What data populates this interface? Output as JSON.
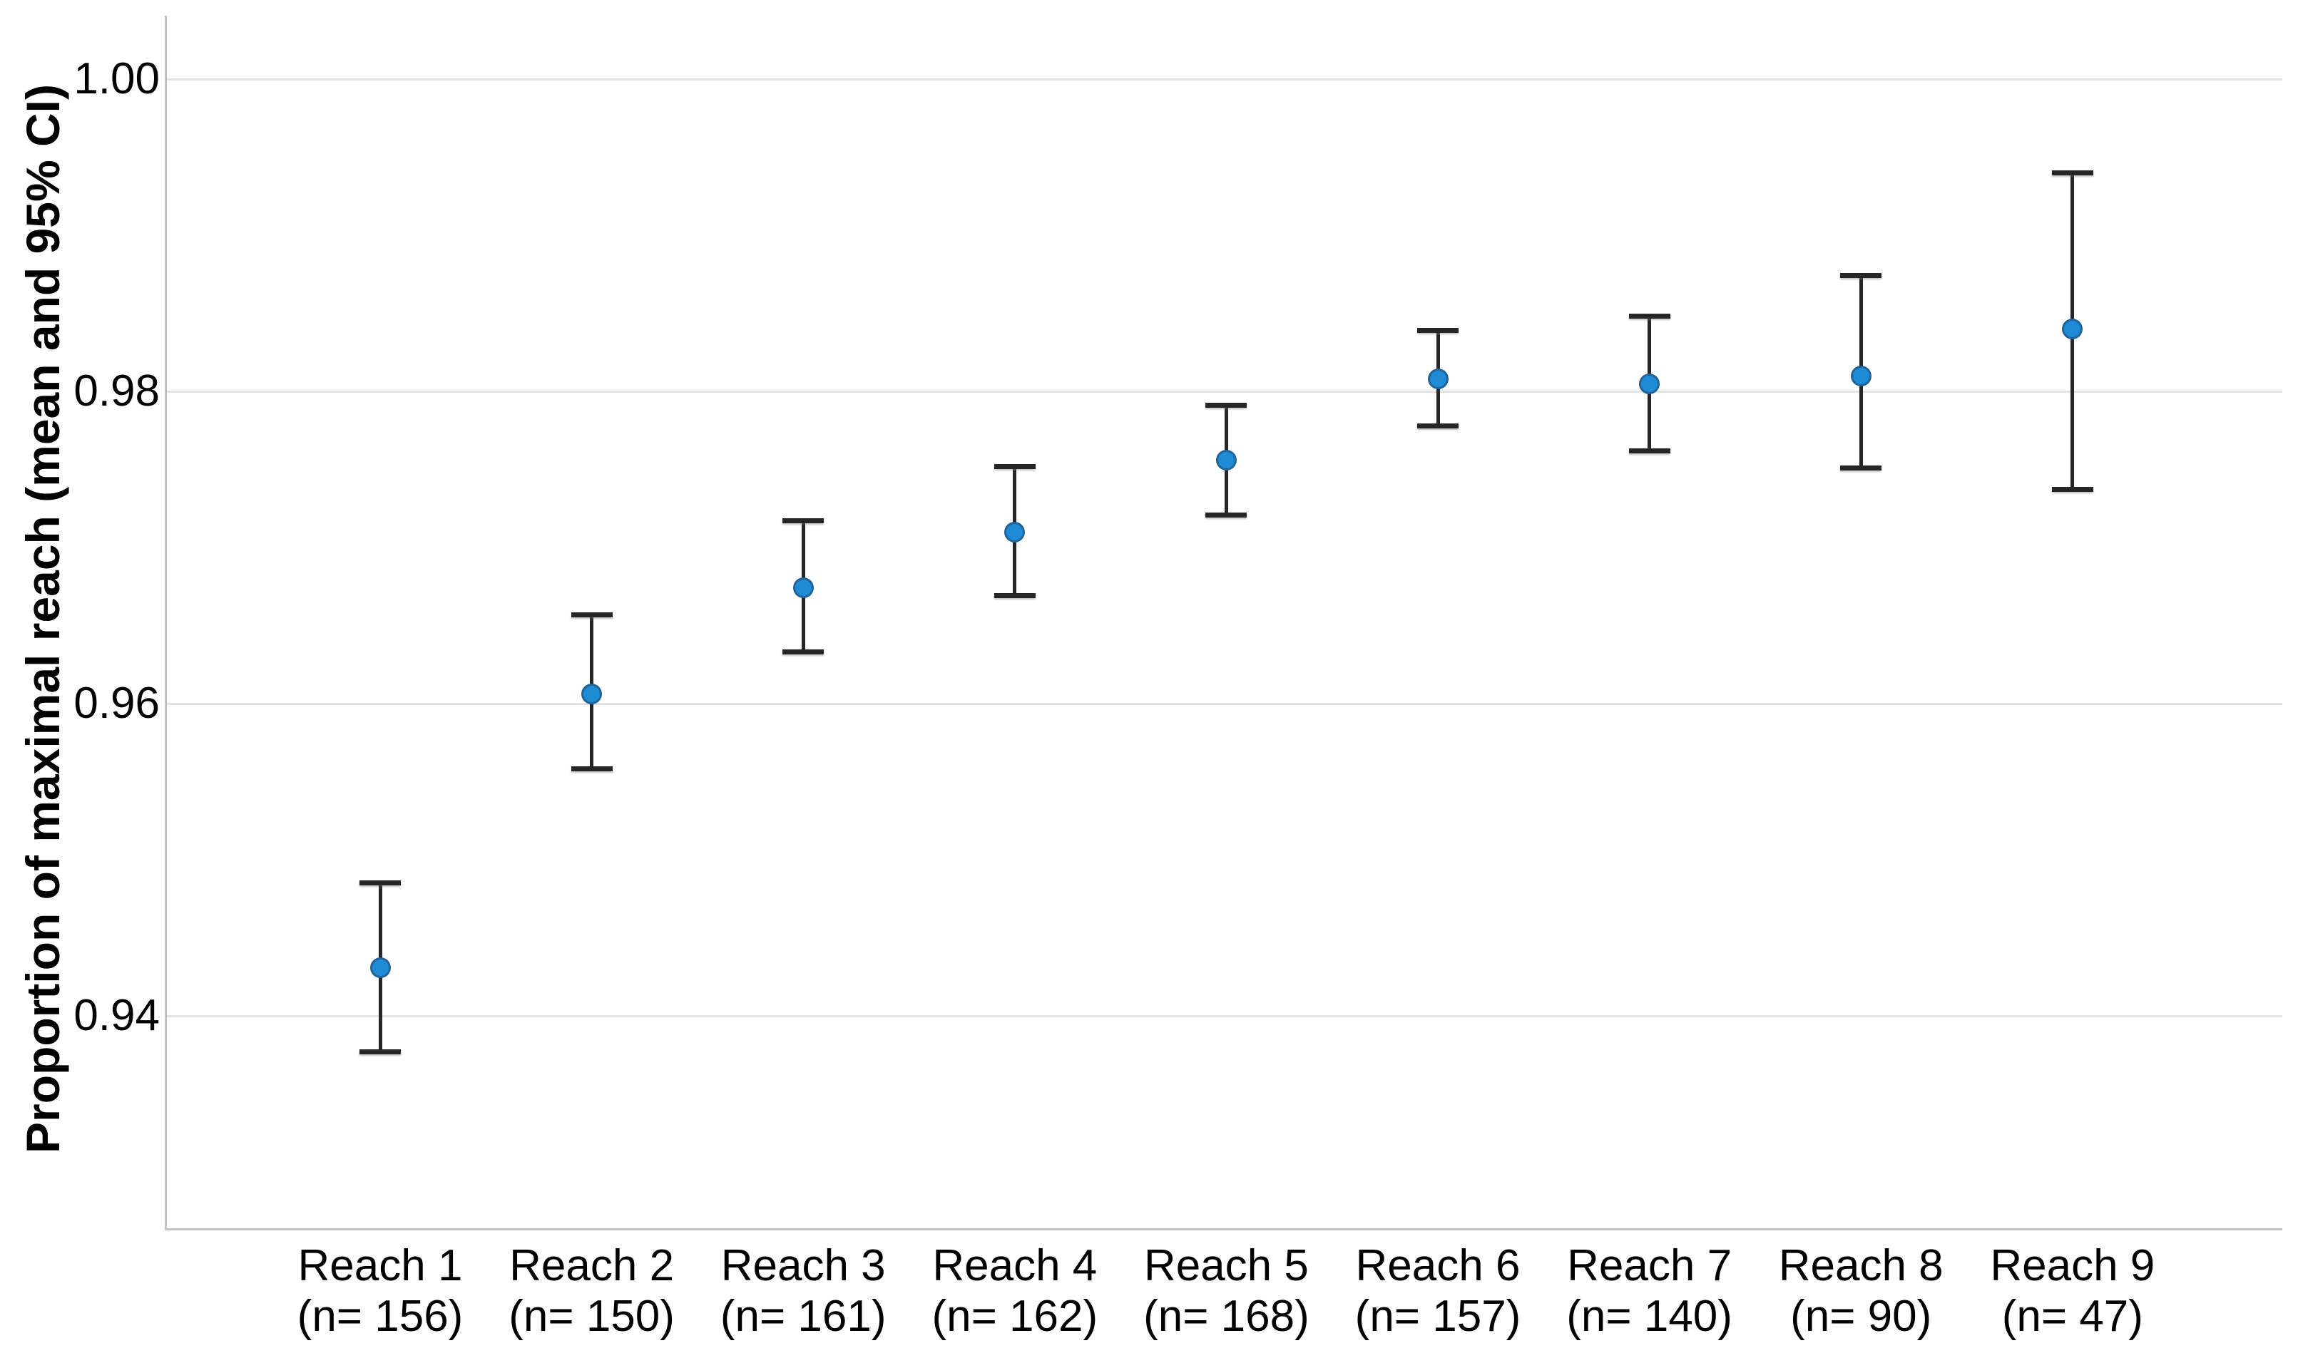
{
  "chart_data": {
    "type": "scatter",
    "subtype": "point-estimates-with-95ci-error-bars",
    "title": "",
    "xlabel": "",
    "ylabel": "Proportion of maximal reach (mean and 95% CI)",
    "ylim": [
      0.926,
      1.004
    ],
    "grid": "horizontal",
    "legend": "none",
    "yticks": [
      {
        "value": 1.0,
        "label": "1.00"
      },
      {
        "value": 0.98,
        "label": "0.98"
      },
      {
        "value": 0.96,
        "label": "0.96"
      },
      {
        "value": 0.94,
        "label": "0.94"
      }
    ],
    "categories": [
      {
        "reach": "Reach 1",
        "n": 156,
        "n_label": "(n= 156)"
      },
      {
        "reach": "Reach 2",
        "n": 150,
        "n_label": "(n= 150)"
      },
      {
        "reach": "Reach 3",
        "n": 161,
        "n_label": "(n= 161)"
      },
      {
        "reach": "Reach 4",
        "n": 162,
        "n_label": "(n= 162)"
      },
      {
        "reach": "Reach 5",
        "n": 168,
        "n_label": "(n= 168)"
      },
      {
        "reach": "Reach 6",
        "n": 157,
        "n_label": "(n= 157)"
      },
      {
        "reach": "Reach 7",
        "n": 140,
        "n_label": "(n= 140)"
      },
      {
        "reach": "Reach 8",
        "n": 90,
        "n_label": "(n= 90)"
      },
      {
        "reach": "Reach 9",
        "n": 47,
        "n_label": "(n= 47)"
      }
    ],
    "series": [
      {
        "name": "Proportion of maximal reach (mean)",
        "points": [
          {
            "mean": 0.9431,
            "ci_low": 0.9377,
            "ci_high": 0.9485
          },
          {
            "mean": 0.9606,
            "ci_low": 0.9558,
            "ci_high": 0.9657
          },
          {
            "mean": 0.9674,
            "ci_low": 0.9633,
            "ci_high": 0.9717
          },
          {
            "mean": 0.971,
            "ci_low": 0.9669,
            "ci_high": 0.9752
          },
          {
            "mean": 0.9756,
            "ci_low": 0.9721,
            "ci_high": 0.9791
          },
          {
            "mean": 0.9808,
            "ci_low": 0.9778,
            "ci_high": 0.9839
          },
          {
            "mean": 0.9805,
            "ci_low": 0.9762,
            "ci_high": 0.9848
          },
          {
            "mean": 0.981,
            "ci_low": 0.9751,
            "ci_high": 0.9874
          },
          {
            "mean": 0.984,
            "ci_low": 0.9737,
            "ci_high": 0.994
          }
        ]
      }
    ],
    "colors": {
      "marker_fill": "#1f8ad6",
      "error_bar": "#262626",
      "gridline": "#e4e4e4",
      "axis_line": "#c2c2c2",
      "text": "#000000"
    }
  }
}
